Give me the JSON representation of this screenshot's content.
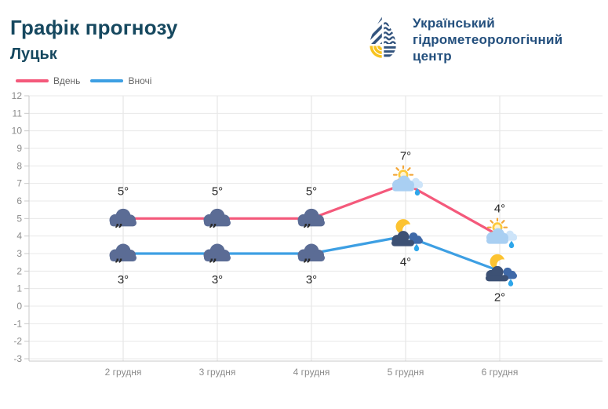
{
  "header": {
    "title": "Графік прогнозу",
    "subtitle": "Луцьк",
    "logo": {
      "line1": "Український",
      "line2": "гідрометеорологічний",
      "line3": "центр"
    }
  },
  "legend": {
    "items": [
      {
        "label": "Вдень",
        "color": "#f4597b"
      },
      {
        "label": "Вночі",
        "color": "#3d9fe3"
      }
    ]
  },
  "chart_data": {
    "type": "line",
    "categories": [
      "2 грудня",
      "3 грудня",
      "4 грудня",
      "5 грудня",
      "6 грудня"
    ],
    "series": [
      {
        "name": "Вдень",
        "color": "#f4597b",
        "values": [
          5,
          5,
          5,
          7,
          4
        ],
        "point_labels": [
          "5°",
          "5°",
          "5°",
          "7°",
          "4°"
        ],
        "label_position": "above",
        "icons": [
          "cloud-drizzle",
          "cloud-drizzle",
          "cloud-drizzle",
          "sun-cloud-rain",
          "sun-cloud-rain"
        ]
      },
      {
        "name": "Вночі",
        "color": "#3d9fe3",
        "values": [
          3,
          3,
          3,
          4,
          2
        ],
        "point_labels": [
          "3°",
          "3°",
          "3°",
          "4°",
          "2°"
        ],
        "label_position": "below",
        "icons": [
          "cloud-drizzle",
          "cloud-drizzle",
          "cloud-drizzle",
          "moon-cloud-rain",
          "moon-cloud-rain"
        ]
      }
    ],
    "y_ticks": [
      12,
      11,
      10,
      9,
      8,
      7,
      6,
      5,
      4,
      3,
      2,
      1,
      0,
      -1,
      -2,
      -3
    ],
    "ylim": [
      -3,
      12
    ],
    "xlabel": "",
    "ylabel": "",
    "grid": true,
    "legend_position": "top-left"
  },
  "colors": {
    "title_text": "#16485f",
    "logo_text": "#234f7d",
    "logo_navy": "#33547e",
    "logo_yellow": "#f7c31f",
    "day_line": "#f4597b",
    "night_line": "#3d9fe3",
    "h_gridline": "#e8e8e8",
    "v_gridline": "#e0e0e0",
    "axis_line": "#c9c9c9",
    "tick_text": "#8b8b8b",
    "point_label_text": "#262626",
    "legend_text": "#666666",
    "background": "#ffffff",
    "drizzle_cloud": "#5b6c95",
    "light_cloud": "#a9cff2",
    "lighter_cloud": "#cde4f9",
    "night_cloud_dark": "#3d5174",
    "night_cloud_blue": "#3f69a8",
    "sun_yellow": "#fdca3c",
    "sun_ray_orange": "#f3a73b",
    "moon_yellow": "#fcc331",
    "rain_drop": "#2ea6ea"
  }
}
